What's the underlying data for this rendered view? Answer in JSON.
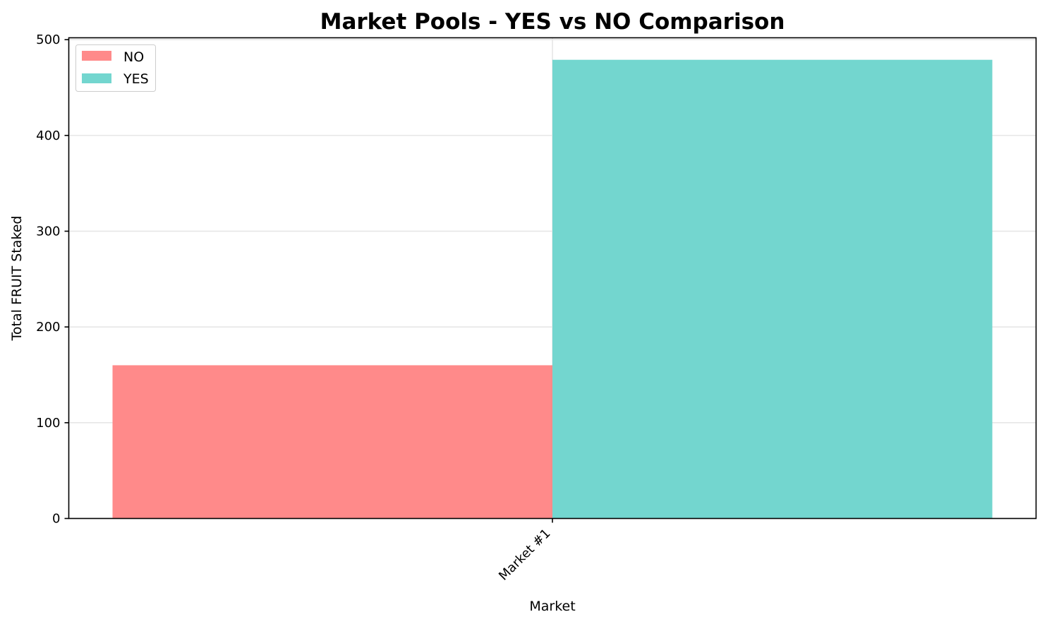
{
  "chart_data": {
    "type": "bar",
    "title": "Market Pools - YES vs NO Comparison",
    "xlabel": "Market",
    "ylabel": "Total FRUIT Staked",
    "categories": [
      "Market #1"
    ],
    "series": [
      {
        "name": "NO",
        "values": [
          160
        ],
        "color": "#ff8a8a"
      },
      {
        "name": "YES",
        "values": [
          479
        ],
        "color": "#73d6cf"
      }
    ],
    "ylim": [
      0,
      502
    ],
    "yticks": [
      0,
      100,
      200,
      300,
      400,
      500
    ],
    "grid": true,
    "legend_position": "top-left"
  }
}
